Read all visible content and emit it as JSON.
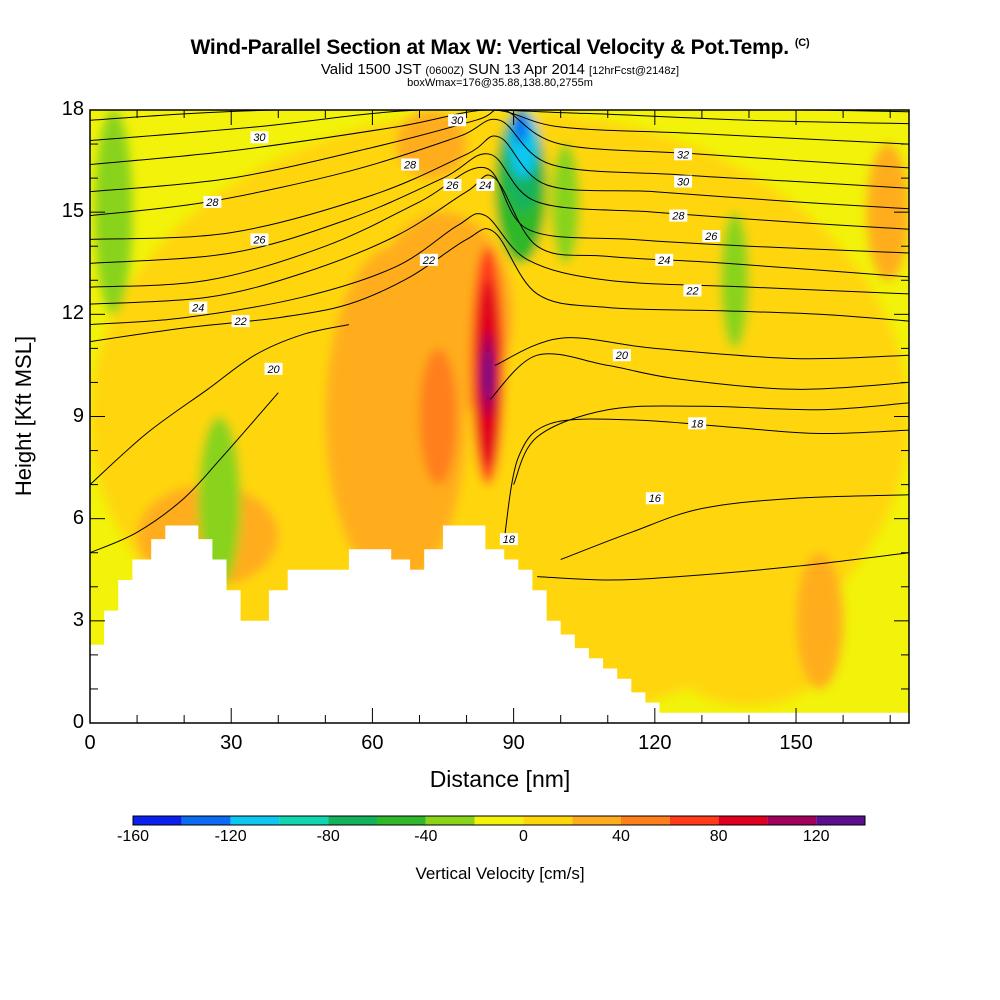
{
  "chart_data": {
    "type": "heatmap",
    "title": "Wind-Parallel Section at Max W: Vertical Velocity & Pot.Temp.",
    "title_mark": "(C)",
    "subtitle_main": "Valid 1500 JST",
    "subtitle_zulu": "(0600Z)",
    "subtitle_date": "SUN 13 Apr 2014",
    "subtitle_fcst": "[12hrFcst@2148z]",
    "subtitle2": "boxWmax=176@35.88,138.80,2755m",
    "xlabel": "Distance [nm]",
    "ylabel": "Height [Kft MSL]",
    "xlim": [
      0,
      174
    ],
    "ylim": [
      0,
      18
    ],
    "x_ticks": [
      0,
      30,
      60,
      90,
      120,
      150
    ],
    "y_ticks": [
      0,
      3,
      6,
      9,
      12,
      15,
      18
    ],
    "colorbar": {
      "label": "Vertical Velocity [cm/s]",
      "tick_values": [
        -160,
        -120,
        -80,
        -40,
        0,
        40,
        80,
        120
      ],
      "bounds": [
        -160,
        -140,
        -120,
        -100,
        -80,
        -60,
        -40,
        -20,
        0,
        20,
        40,
        60,
        80,
        100,
        120,
        140
      ],
      "colors": [
        "#0b1fee",
        "#0d6bf2",
        "#0ec7f0",
        "#10d6b0",
        "#13b25d",
        "#2fb82a",
        "#89d31a",
        "#f2f20a",
        "#ffd60a",
        "#ffad1f",
        "#ff7f1a",
        "#ff3b1c",
        "#e0001f",
        "#a2005c",
        "#5c0f8c"
      ]
    },
    "background_fill": "#f2f20a",
    "w_regions": [
      {
        "value": 10,
        "x": [
          0,
          174
        ],
        "y": [
          0,
          18
        ]
      },
      {
        "value": 30,
        "x": [
          50,
          80
        ],
        "y": [
          4,
          14
        ]
      },
      {
        "value": 30,
        "x": [
          60,
          90
        ],
        "y": [
          9,
          15
        ]
      },
      {
        "value": 50,
        "x": [
          70,
          78
        ],
        "y": [
          7,
          11
        ]
      },
      {
        "value": 30,
        "x": [
          10,
          40
        ],
        "y": [
          4,
          7
        ]
      },
      {
        "value": 10,
        "x": [
          120,
          160
        ],
        "y": [
          0.5,
          5
        ]
      },
      {
        "value": 30,
        "x": [
          150,
          160
        ],
        "y": [
          1,
          5
        ]
      },
      {
        "value": 30,
        "x": [
          165,
          174
        ],
        "y": [
          13,
          17
        ]
      },
      {
        "value": 30,
        "x": [
          65,
          80
        ],
        "y": [
          16,
          18
        ]
      },
      {
        "value": 60,
        "x": [
          81,
          88
        ],
        "y": [
          7,
          14
        ]
      },
      {
        "value": 80,
        "x": [
          82,
          87
        ],
        "y": [
          7.5,
          13
        ]
      },
      {
        "value": 100,
        "x": [
          83,
          86
        ],
        "y": [
          9,
          11.5
        ]
      },
      {
        "value": 130,
        "x": [
          83.5,
          85.5
        ],
        "y": [
          9.5,
          11
        ]
      },
      {
        "value": -30,
        "x": [
          1,
          9
        ],
        "y": [
          12,
          18
        ]
      },
      {
        "value": -30,
        "x": [
          23,
          32
        ],
        "y": [
          4,
          9
        ]
      },
      {
        "value": -30,
        "x": [
          98,
          104
        ],
        "y": [
          13.5,
          17
        ]
      },
      {
        "value": -30,
        "x": [
          134,
          140
        ],
        "y": [
          11,
          15
        ]
      },
      {
        "value": -50,
        "x": [
          86,
          97
        ],
        "y": [
          13.5,
          18
        ]
      },
      {
        "value": -70,
        "x": [
          88,
          96
        ],
        "y": [
          15,
          18
        ]
      },
      {
        "value": -110,
        "x": [
          89,
          95
        ],
        "y": [
          16,
          18
        ]
      },
      {
        "value": -140,
        "x": [
          90,
          93
        ],
        "y": [
          17,
          18
        ]
      }
    ],
    "terrain": [
      {
        "x": 0,
        "h": 2.3
      },
      {
        "x": 3,
        "h": 2.3
      },
      {
        "x": 3,
        "h": 3.3
      },
      {
        "x": 6,
        "h": 3.3
      },
      {
        "x": 6,
        "h": 4.2
      },
      {
        "x": 9,
        "h": 4.2
      },
      {
        "x": 9,
        "h": 4.8
      },
      {
        "x": 13,
        "h": 4.8
      },
      {
        "x": 13,
        "h": 5.4
      },
      {
        "x": 16,
        "h": 5.4
      },
      {
        "x": 16,
        "h": 5.8
      },
      {
        "x": 23,
        "h": 5.8
      },
      {
        "x": 23,
        "h": 5.4
      },
      {
        "x": 26,
        "h": 5.4
      },
      {
        "x": 26,
        "h": 4.8
      },
      {
        "x": 29,
        "h": 4.8
      },
      {
        "x": 29,
        "h": 3.9
      },
      {
        "x": 32,
        "h": 3.9
      },
      {
        "x": 32,
        "h": 3.0
      },
      {
        "x": 38,
        "h": 3.0
      },
      {
        "x": 38,
        "h": 3.9
      },
      {
        "x": 42,
        "h": 3.9
      },
      {
        "x": 42,
        "h": 4.5
      },
      {
        "x": 55,
        "h": 4.5
      },
      {
        "x": 55,
        "h": 5.1
      },
      {
        "x": 64,
        "h": 5.1
      },
      {
        "x": 64,
        "h": 4.8
      },
      {
        "x": 68,
        "h": 4.8
      },
      {
        "x": 68,
        "h": 4.5
      },
      {
        "x": 71,
        "h": 4.5
      },
      {
        "x": 71,
        "h": 5.1
      },
      {
        "x": 75,
        "h": 5.1
      },
      {
        "x": 75,
        "h": 5.8
      },
      {
        "x": 84,
        "h": 5.8
      },
      {
        "x": 84,
        "h": 5.1
      },
      {
        "x": 88,
        "h": 5.1
      },
      {
        "x": 88,
        "h": 4.8
      },
      {
        "x": 91,
        "h": 4.8
      },
      {
        "x": 91,
        "h": 4.5
      },
      {
        "x": 94,
        "h": 4.5
      },
      {
        "x": 94,
        "h": 3.9
      },
      {
        "x": 97,
        "h": 3.9
      },
      {
        "x": 97,
        "h": 3.0
      },
      {
        "x": 100,
        "h": 3.0
      },
      {
        "x": 100,
        "h": 2.6
      },
      {
        "x": 103,
        "h": 2.6
      },
      {
        "x": 103,
        "h": 2.2
      },
      {
        "x": 106,
        "h": 2.2
      },
      {
        "x": 106,
        "h": 1.9
      },
      {
        "x": 109,
        "h": 1.9
      },
      {
        "x": 109,
        "h": 1.6
      },
      {
        "x": 112,
        "h": 1.6
      },
      {
        "x": 112,
        "h": 1.3
      },
      {
        "x": 115,
        "h": 1.3
      },
      {
        "x": 115,
        "h": 0.9
      },
      {
        "x": 118,
        "h": 0.9
      },
      {
        "x": 118,
        "h": 0.6
      },
      {
        "x": 121,
        "h": 0.6
      },
      {
        "x": 121,
        "h": 0.3
      },
      {
        "x": 174,
        "h": 0.3
      }
    ],
    "isentropes": [
      {
        "theta": 16,
        "points": [
          [
            100,
            4.8
          ],
          [
            115,
            5.6
          ],
          [
            130,
            6.3
          ],
          [
            150,
            6.6
          ],
          [
            174,
            6.7
          ]
        ]
      },
      {
        "theta": 16,
        "points": [
          [
            95,
            4.3
          ],
          [
            110,
            4.2
          ],
          [
            125,
            4.3
          ],
          [
            150,
            4.6
          ],
          [
            174,
            5.0
          ]
        ]
      },
      {
        "theta": 18,
        "points": [
          [
            0,
            5.0
          ],
          [
            10,
            5.6
          ],
          [
            20,
            6.6
          ],
          [
            28,
            7.8
          ],
          [
            35,
            8.9
          ],
          [
            40,
            9.7
          ]
        ]
      },
      {
        "theta": 18,
        "points": [
          [
            88,
            5.4
          ],
          [
            91,
            7.8
          ],
          [
            98,
            8.8
          ],
          [
            115,
            8.9
          ],
          [
            135,
            8.7
          ],
          [
            155,
            8.5
          ],
          [
            174,
            8.6
          ]
        ]
      },
      {
        "theta": 18,
        "points": [
          [
            90,
            7.0
          ],
          [
            95,
            8.4
          ],
          [
            110,
            9.2
          ],
          [
            130,
            9.3
          ],
          [
            155,
            9.2
          ],
          [
            174,
            9.4
          ]
        ]
      },
      {
        "theta": 20,
        "points": [
          [
            0,
            7.0
          ],
          [
            12,
            8.5
          ],
          [
            25,
            9.8
          ],
          [
            35,
            10.8
          ],
          [
            45,
            11.4
          ],
          [
            55,
            11.7
          ]
        ]
      },
      {
        "theta": 20,
        "points": [
          [
            85,
            9.5
          ],
          [
            95,
            10.8
          ],
          [
            110,
            10.5
          ],
          [
            125,
            10.1
          ],
          [
            150,
            9.8
          ],
          [
            174,
            10.0
          ]
        ]
      },
      {
        "theta": 20,
        "points": [
          [
            86,
            10.5
          ],
          [
            100,
            11.3
          ],
          [
            120,
            11.0
          ],
          [
            150,
            10.7
          ],
          [
            174,
            10.8
          ]
        ]
      },
      {
        "theta": 22,
        "points": [
          [
            0,
            11.2
          ],
          [
            20,
            11.6
          ],
          [
            40,
            11.9
          ],
          [
            55,
            12.3
          ],
          [
            68,
            13.1
          ],
          [
            80,
            14.2
          ],
          [
            86,
            14.4
          ],
          [
            95,
            12.6
          ],
          [
            110,
            12.2
          ],
          [
            135,
            12.1
          ],
          [
            155,
            12.0
          ],
          [
            174,
            11.8
          ]
        ]
      },
      {
        "theta": 22,
        "points": [
          [
            0,
            11.7
          ],
          [
            20,
            11.9
          ],
          [
            45,
            12.5
          ],
          [
            65,
            13.4
          ],
          [
            78,
            14.6
          ],
          [
            84,
            14.9
          ],
          [
            93,
            13.6
          ],
          [
            110,
            13.0
          ],
          [
            140,
            12.8
          ],
          [
            174,
            12.6
          ]
        ]
      },
      {
        "theta": 24,
        "points": [
          [
            0,
            12.3
          ],
          [
            25,
            12.5
          ],
          [
            45,
            13.2
          ],
          [
            65,
            14.3
          ],
          [
            80,
            15.6
          ],
          [
            86,
            16.0
          ],
          [
            95,
            14.0
          ],
          [
            110,
            13.7
          ],
          [
            135,
            13.5
          ],
          [
            174,
            13.1
          ]
        ]
      },
      {
        "theta": 24,
        "points": [
          [
            0,
            12.8
          ],
          [
            25,
            13.0
          ],
          [
            50,
            14.0
          ],
          [
            70,
            15.3
          ],
          [
            84,
            16.3
          ],
          [
            93,
            14.5
          ],
          [
            115,
            14.2
          ],
          [
            140,
            14.0
          ],
          [
            174,
            13.8
          ]
        ]
      },
      {
        "theta": 26,
        "points": [
          [
            0,
            13.5
          ],
          [
            30,
            13.8
          ],
          [
            55,
            14.8
          ],
          [
            75,
            16.0
          ],
          [
            85,
            16.7
          ],
          [
            95,
            15.3
          ],
          [
            120,
            15.0
          ],
          [
            150,
            14.7
          ],
          [
            174,
            14.5
          ]
        ]
      },
      {
        "theta": 26,
        "points": [
          [
            0,
            14.2
          ],
          [
            30,
            14.4
          ],
          [
            60,
            15.5
          ],
          [
            80,
            16.7
          ],
          [
            87,
            17.2
          ],
          [
            97,
            15.8
          ],
          [
            120,
            15.6
          ],
          [
            150,
            15.3
          ],
          [
            174,
            15.1
          ]
        ]
      },
      {
        "theta": 28,
        "points": [
          [
            0,
            14.9
          ],
          [
            25,
            15.3
          ],
          [
            55,
            16.2
          ],
          [
            78,
            17.2
          ],
          [
            87,
            17.7
          ],
          [
            98,
            16.4
          ],
          [
            125,
            16.1
          ],
          [
            150,
            15.9
          ],
          [
            174,
            15.7
          ]
        ]
      },
      {
        "theta": 28,
        "points": [
          [
            0,
            15.6
          ],
          [
            30,
            16.0
          ],
          [
            60,
            16.9
          ],
          [
            82,
            17.7
          ],
          [
            88,
            18.0
          ],
          [
            100,
            17.0
          ],
          [
            130,
            16.7
          ],
          [
            174,
            16.3
          ]
        ]
      },
      {
        "theta": 30,
        "points": [
          [
            0,
            16.4
          ],
          [
            30,
            16.8
          ],
          [
            65,
            17.5
          ],
          [
            85,
            18.0
          ],
          [
            100,
            17.5
          ],
          [
            130,
            17.3
          ],
          [
            174,
            17.0
          ]
        ]
      },
      {
        "theta": 30,
        "points": [
          [
            0,
            17.1
          ],
          [
            35,
            17.5
          ],
          [
            70,
            18.0
          ],
          [
            105,
            17.9
          ],
          [
            140,
            17.7
          ],
          [
            174,
            17.6
          ]
        ]
      },
      {
        "theta": 32,
        "points": [
          [
            0,
            17.7
          ],
          [
            40,
            18.0
          ],
          [
            110,
            18.0
          ],
          [
            150,
            18.0
          ],
          [
            174,
            17.95
          ]
        ]
      }
    ],
    "contour_labels": [
      {
        "text": "30",
        "x": 36,
        "y": 17.2
      },
      {
        "text": "28",
        "x": 26,
        "y": 15.3
      },
      {
        "text": "26",
        "x": 36,
        "y": 14.2
      },
      {
        "text": "24",
        "x": 23,
        "y": 12.2
      },
      {
        "text": "22",
        "x": 32,
        "y": 11.8
      },
      {
        "text": "20",
        "x": 39,
        "y": 10.4
      },
      {
        "text": "30",
        "x": 78,
        "y": 17.7
      },
      {
        "text": "28",
        "x": 68,
        "y": 16.4
      },
      {
        "text": "26",
        "x": 77,
        "y": 15.8
      },
      {
        "text": "24",
        "x": 84,
        "y": 15.8
      },
      {
        "text": "22",
        "x": 72,
        "y": 13.6
      },
      {
        "text": "32",
        "x": 126,
        "y": 16.7
      },
      {
        "text": "30",
        "x": 126,
        "y": 15.9
      },
      {
        "text": "28",
        "x": 125,
        "y": 14.9
      },
      {
        "text": "26",
        "x": 132,
        "y": 14.3
      },
      {
        "text": "24",
        "x": 122,
        "y": 13.6
      },
      {
        "text": "22",
        "x": 128,
        "y": 12.7
      },
      {
        "text": "20",
        "x": 113,
        "y": 10.8
      },
      {
        "text": "18",
        "x": 129,
        "y": 8.8
      },
      {
        "text": "16",
        "x": 120,
        "y": 6.6
      },
      {
        "text": "18",
        "x": 89,
        "y": 5.4
      }
    ]
  }
}
